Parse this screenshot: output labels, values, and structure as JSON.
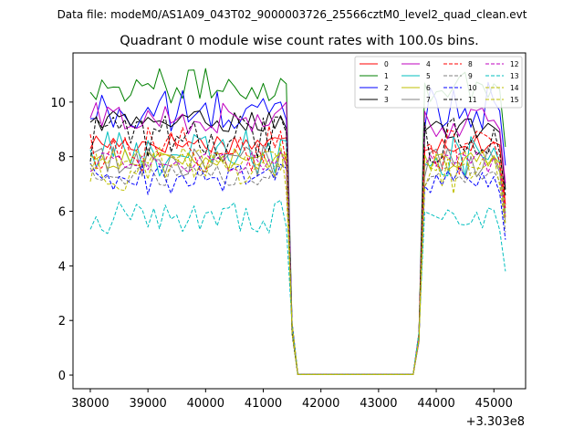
{
  "chart_data": {
    "type": "line",
    "suptitle": "Data file: modeM0/AS1A09_043T02_9000003726_25566cztM0_level2_quad_clean.evt",
    "title": "Quadrant 0 module wise count rates with 100.0s bins.",
    "xlabel": "",
    "ylabel": "",
    "x_offset_label": "+3.303e8",
    "xlim": [
      37700,
      45550
    ],
    "ylim": [
      -0.5,
      11.8
    ],
    "x_ticks": [
      38000,
      39000,
      40000,
      41000,
      42000,
      43000,
      44000,
      45000
    ],
    "y_ticks": [
      0,
      2,
      4,
      6,
      8,
      10
    ],
    "legend_position": "upper right",
    "segments": {
      "on1_start": 38000,
      "on1_end": 41400,
      "off_start": 41600,
      "off_end": 43600,
      "on2_start": 43800,
      "on2_end": 45100,
      "end": 45200,
      "step": 100
    },
    "series": [
      {
        "name": "0",
        "color": "#ff0000",
        "style": "solid",
        "mean1": 8.5,
        "mean2": 8.5
      },
      {
        "name": "1",
        "color": "#008000",
        "style": "solid",
        "mean1": 10.6,
        "mean2": 10.6
      },
      {
        "name": "2",
        "color": "#0000ff",
        "style": "solid",
        "mean1": 9.6,
        "mean2": 9.9
      },
      {
        "name": "3",
        "color": "#000000",
        "style": "solid",
        "mean1": 9.3,
        "mean2": 9.0
      },
      {
        "name": "4",
        "color": "#bf00bf",
        "style": "solid",
        "mean1": 9.4,
        "mean2": 9.2
      },
      {
        "name": "5",
        "color": "#00bfbf",
        "style": "solid",
        "mean1": 8.1,
        "mean2": 8.1
      },
      {
        "name": "6",
        "color": "#bfbf00",
        "style": "solid",
        "mean1": 7.9,
        "mean2": 7.9
      },
      {
        "name": "7",
        "color": "#808080",
        "style": "solid",
        "mean1": 7.8,
        "mean2": 7.7
      },
      {
        "name": "8",
        "color": "#ff0000",
        "style": "dashed",
        "mean1": 8.3,
        "mean2": 8.2
      },
      {
        "name": "9",
        "color": "#808080",
        "style": "dashed",
        "mean1": 7.3,
        "mean2": 7.3
      },
      {
        "name": "10",
        "color": "#0000ff",
        "style": "dashed",
        "mean1": 7.2,
        "mean2": 7.0
      },
      {
        "name": "11",
        "color": "#000000",
        "style": "dashed",
        "mean1": 8.7,
        "mean2": 8.6
      },
      {
        "name": "12",
        "color": "#bf00bf",
        "style": "dashed",
        "mean1": 7.8,
        "mean2": 7.8
      },
      {
        "name": "13",
        "color": "#00bfbf",
        "style": "dashed",
        "mean1": 5.8,
        "mean2": 5.7
      },
      {
        "name": "14",
        "color": "#bfbf00",
        "style": "dashed",
        "mean1": 7.6,
        "mean2": 7.5
      },
      {
        "name": "15",
        "color": "#bfbf00",
        "style": "dashed",
        "mean1": 7.9,
        "mean2": 7.8
      }
    ]
  }
}
